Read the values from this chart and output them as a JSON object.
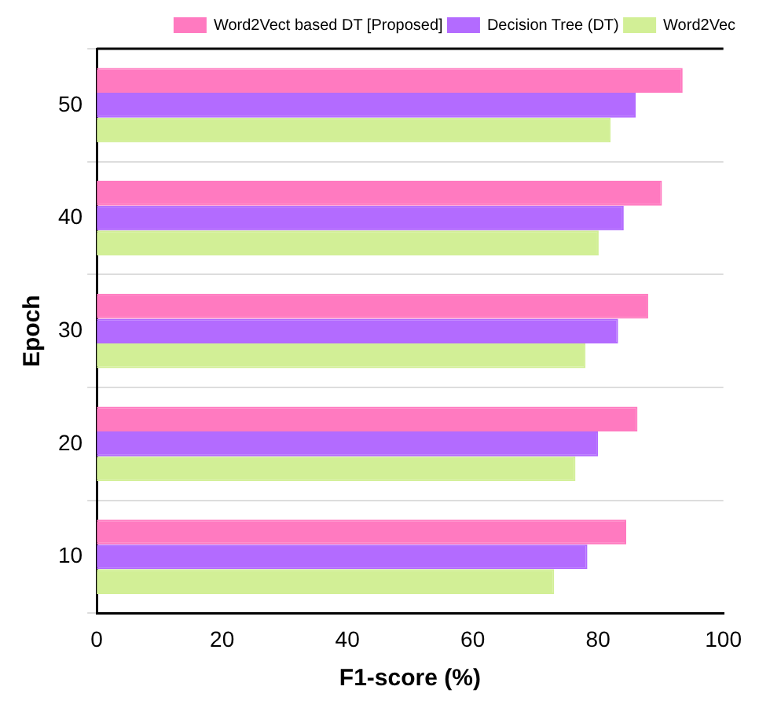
{
  "chart_data": {
    "type": "bar",
    "orientation": "horizontal",
    "xlabel": "F1-score (%)",
    "ylabel": "Epoch",
    "categories": [
      "50",
      "40",
      "30",
      "20",
      "10"
    ],
    "series": [
      {
        "name": "Word2Vect based DT [Proposed]",
        "color": "#ff7ac0",
        "values": [
          93.5,
          90.2,
          88.0,
          86.3,
          84.5
        ]
      },
      {
        "name": "Decision Tree (DT)",
        "color": "#b36bff",
        "values": [
          86.0,
          84.1,
          83.2,
          80.0,
          78.3
        ]
      },
      {
        "name": "Word2Vec",
        "color": "#d2ef96",
        "values": [
          82.0,
          80.1,
          78.0,
          76.4,
          73.0
        ]
      }
    ],
    "xlim": [
      0,
      100
    ],
    "xticks": [
      0,
      20,
      40,
      60,
      80,
      100
    ],
    "grid": "y",
    "legend": "top right"
  }
}
